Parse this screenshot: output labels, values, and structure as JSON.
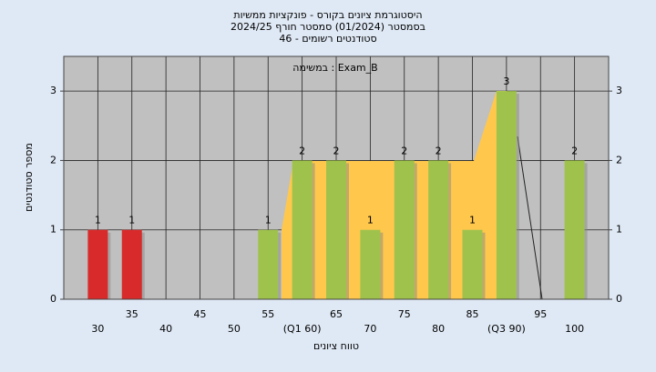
{
  "chart_data": {
    "type": "bar",
    "title": "היסטוגרמת ציונים בקורס - פונקציות ממשיות",
    "subtitle": "בסמסטר  (01/2024)  סמסטר חורף 2024/25",
    "subtitle2": "סטודנטים רשומים - 46",
    "annotation": "במשימה : Exam_B",
    "x_label": "טווח ציונים",
    "y_label": "מספר סטודנטים",
    "categories": [
      "30",
      "35",
      "40",
      "45",
      "50",
      "55",
      "(Q1 60)",
      "65",
      "70",
      "75",
      "80",
      "85",
      "(Q3 90)",
      "95",
      "100"
    ],
    "values": [
      1,
      1,
      null,
      null,
      null,
      1,
      2,
      2,
      1,
      2,
      2,
      1,
      3,
      null,
      2
    ],
    "colors": [
      "#d82a2a",
      "#d82a2a",
      null,
      null,
      null,
      "#9fc24c",
      "#9fc24c",
      "#9fc24c",
      "#9fc24c",
      "#9fc24c",
      "#9fc24c",
      "#9fc24c",
      "#9fc24c",
      null,
      "#9fc24c"
    ],
    "ylim": [
      0,
      3.5
    ],
    "yticks": [
      0,
      1,
      2,
      3
    ],
    "grid": true
  }
}
